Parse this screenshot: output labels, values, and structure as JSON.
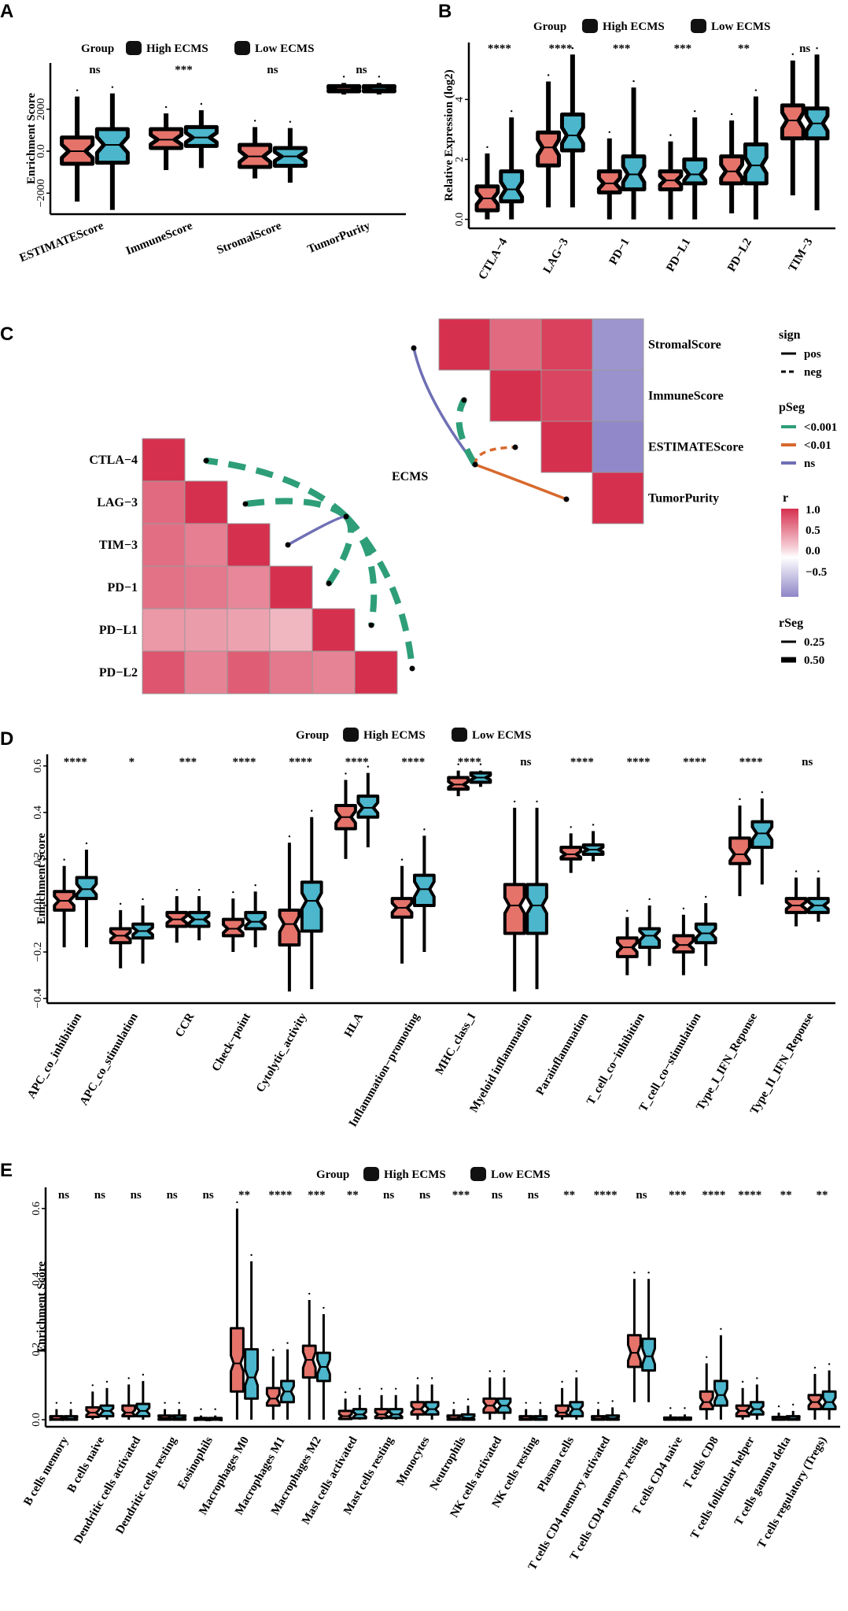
{
  "colors": {
    "high": "#E5736A",
    "low": "#4BB6CC",
    "edge": "#000000",
    "green": "#2E9E78",
    "orange": "#D8692E",
    "purple": "#6F6FB5"
  },
  "legend": {
    "group_title": "Group",
    "high_label": "High ECMS",
    "low_label": "Low  ECMS"
  },
  "chart_data": [
    {
      "panel": "A",
      "type": "box",
      "ylabel": "Enrichment Score",
      "yticks": [
        -2000,
        0,
        2000
      ],
      "ylim": [
        -3000,
        4200
      ],
      "categories": [
        "ESTIMATEScore",
        "ImmuneScore",
        "StromalScore",
        "TumorPurity"
      ],
      "signif": [
        "ns",
        "***",
        "ns",
        "ns"
      ],
      "high": [
        [
          -2400,
          -600,
          0,
          650,
          2600
        ],
        [
          -900,
          150,
          550,
          1050,
          1800
        ],
        [
          -1300,
          -750,
          -250,
          300,
          1150
        ],
        [
          2700,
          2850,
          2950,
          3100,
          3250
        ]
      ],
      "low": [
        [
          -2800,
          -550,
          300,
          1050,
          2750
        ],
        [
          -800,
          250,
          650,
          1150,
          1950
        ],
        [
          -1500,
          -700,
          -250,
          150,
          1100
        ],
        [
          2700,
          2850,
          2950,
          3100,
          3250
        ]
      ]
    },
    {
      "panel": "B",
      "type": "box",
      "ylabel": "Relative Expression (log2)",
      "yticks": [
        0,
        2,
        4
      ],
      "ylim": [
        -0.3,
        5.9
      ],
      "categories": [
        "CTLA−4",
        "LAG−3",
        "PD−1",
        "PD−L1",
        "PD−L2",
        "TIM−3"
      ],
      "signif": [
        "****",
        "****",
        "***",
        "***",
        "**",
        "ns"
      ],
      "high": [
        [
          0,
          0.3,
          0.7,
          1.1,
          2.2
        ],
        [
          0.4,
          1.8,
          2.4,
          2.9,
          4.6
        ],
        [
          0,
          0.9,
          1.2,
          1.6,
          2.7
        ],
        [
          0,
          1,
          1.3,
          1.6,
          2.6
        ],
        [
          0.2,
          1.2,
          1.6,
          2.1,
          3.3
        ],
        [
          0.8,
          2.7,
          3.3,
          3.8,
          5.3
        ]
      ],
      "low": [
        [
          0,
          0.6,
          1,
          1.6,
          3.4
        ],
        [
          0.4,
          2.3,
          2.8,
          3.5,
          5.5
        ],
        [
          0,
          1,
          1.5,
          2.1,
          4.4
        ],
        [
          0,
          1.2,
          1.5,
          2,
          3.4
        ],
        [
          0,
          1.2,
          1.8,
          2.5,
          4.1
        ],
        [
          0.3,
          2.7,
          3.2,
          3.7,
          5.5
        ]
      ]
    },
    {
      "panel": "C",
      "type": "correlation-network",
      "right_matrix": {
        "labels": [
          "StromalScore",
          "ImmuneScore",
          "ESTIMATEScore",
          "TumorPurity"
        ],
        "r": [
          [
            1.0,
            0.72,
            0.92,
            -0.88
          ],
          [
            0.72,
            1.0,
            0.9,
            -0.9
          ],
          [
            0.92,
            0.9,
            1.0,
            -0.98
          ],
          [
            -0.88,
            -0.9,
            -0.98,
            1.0
          ]
        ]
      },
      "left_matrix": {
        "labels": [
          "CTLA−4",
          "LAG−3",
          "TIM−3",
          "PD−1",
          "PD−L1",
          "PD−L2"
        ],
        "r": [
          [
            1,
            0,
            0,
            0,
            0,
            0
          ],
          [
            0.72,
            1,
            0,
            0,
            0,
            0
          ],
          [
            0.7,
            0.62,
            1,
            0,
            0,
            0
          ],
          [
            0.68,
            0.65,
            0.58,
            1,
            0,
            0
          ],
          [
            0.5,
            0.48,
            0.45,
            0.35,
            1,
            0
          ],
          [
            0.82,
            0.6,
            0.78,
            0.65,
            0.6,
            1
          ]
        ]
      },
      "hub_label": "ECMS",
      "legend": {
        "sign_title": "sign",
        "sign_items": [
          "pos",
          "neg"
        ],
        "pseg_title": "pSeg",
        "pseg_items": [
          "<0.001",
          "<0.01",
          "ns"
        ],
        "r_title": "r",
        "r_ticks": [
          "1.0",
          "0.5",
          "0.0",
          "−0.5"
        ],
        "rseg_title": "rSeg",
        "rseg_items": [
          "0.25",
          "0.50"
        ]
      },
      "links": [
        {
          "to": "CTLA−4",
          "sign": "neg",
          "p": "<0.001",
          "r": 0.5
        },
        {
          "to": "LAG−3",
          "sign": "neg",
          "p": "<0.001",
          "r": 0.5
        },
        {
          "to": "TIM−3",
          "sign": "pos",
          "p": "ns",
          "r": 0.25
        },
        {
          "to": "PD−1",
          "sign": "neg",
          "p": "<0.001",
          "r": 0.5
        },
        {
          "to": "PD−L1",
          "sign": "neg",
          "p": "<0.001",
          "r": 0.5
        },
        {
          "to": "PD−L2",
          "sign": "neg",
          "p": "<0.001",
          "r": 0.5
        },
        {
          "to": "StromalScore",
          "sign": "pos",
          "p": "ns",
          "r": 0.25
        },
        {
          "to": "ImmuneScore",
          "sign": "neg",
          "p": "<0.001",
          "r": 0.5
        },
        {
          "to": "ESTIMATEScore",
          "sign": "neg",
          "p": "<0.01",
          "r": 0.25
        },
        {
          "to": "TumorPurity",
          "sign": "pos",
          "p": "<0.01",
          "r": 0.25
        }
      ]
    },
    {
      "panel": "D",
      "type": "box",
      "ylabel": "Enrichment Score",
      "yticks": [
        -0.4,
        -0.2,
        0.0,
        0.2,
        0.4,
        0.6
      ],
      "ylim": [
        -0.42,
        0.65
      ],
      "categories": [
        "APC_co_inhibition",
        "APC_co_stimulation",
        "CCR",
        "Check−point",
        "Cytolytic_activity",
        "HLA",
        "Inflammation−promoting",
        "MHC_class_I",
        "Myeloid inflammation",
        "Parainflammation",
        "T_cell_co−inhibition",
        "T_cell_co−stimulation",
        "Type_I_IFN_Reponse",
        "Type_II_IFN_Reponse"
      ],
      "signif": [
        "****",
        "*",
        "***",
        "****",
        "****",
        "****",
        "****",
        "****",
        "ns",
        "****",
        "****",
        "****",
        "****",
        "ns"
      ],
      "high": [
        [
          -0.18,
          -0.02,
          0.02,
          0.06,
          0.17
        ],
        [
          -0.27,
          -0.16,
          -0.13,
          -0.1,
          -0.02
        ],
        [
          -0.16,
          -0.09,
          -0.06,
          -0.03,
          0.04
        ],
        [
          -0.2,
          -0.13,
          -0.1,
          -0.06,
          0.03
        ],
        [
          -0.37,
          -0.17,
          -0.08,
          -0.02,
          0.27
        ],
        [
          0.2,
          0.33,
          0.38,
          0.43,
          0.54
        ],
        [
          -0.25,
          -0.05,
          -0.01,
          0.03,
          0.17
        ],
        [
          0.47,
          0.5,
          0.52,
          0.55,
          0.58
        ],
        [
          -0.37,
          -0.12,
          0.0,
          0.09,
          0.42
        ],
        [
          0.14,
          0.2,
          0.22,
          0.25,
          0.31
        ],
        [
          -0.3,
          -0.22,
          -0.18,
          -0.14,
          -0.05
        ],
        [
          -0.3,
          -0.2,
          -0.17,
          -0.13,
          -0.04
        ],
        [
          0.04,
          0.18,
          0.22,
          0.29,
          0.43
        ],
        [
          -0.09,
          -0.03,
          0.0,
          0.03,
          0.12
        ]
      ],
      "low": [
        [
          -0.18,
          0.03,
          0.07,
          0.12,
          0.24
        ],
        [
          -0.25,
          -0.14,
          -0.11,
          -0.08,
          0.0
        ],
        [
          -0.15,
          -0.09,
          -0.06,
          -0.03,
          0.04
        ],
        [
          -0.18,
          -0.1,
          -0.07,
          -0.03,
          0.06
        ],
        [
          -0.36,
          -0.11,
          0.02,
          0.1,
          0.38
        ],
        [
          0.25,
          0.38,
          0.42,
          0.47,
          0.57
        ],
        [
          -0.2,
          0.0,
          0.07,
          0.13,
          0.3
        ],
        [
          0.51,
          0.53,
          0.55,
          0.57,
          0.58
        ],
        [
          -0.36,
          -0.12,
          0.0,
          0.09,
          0.42
        ],
        [
          0.19,
          0.22,
          0.24,
          0.26,
          0.32
        ],
        [
          -0.26,
          -0.18,
          -0.13,
          -0.1,
          0.0
        ],
        [
          -0.26,
          -0.16,
          -0.12,
          -0.08,
          0.01
        ],
        [
          0.09,
          0.25,
          0.31,
          0.36,
          0.46
        ],
        [
          -0.07,
          -0.03,
          0.0,
          0.03,
          0.12
        ]
      ]
    },
    {
      "panel": "E",
      "type": "box",
      "ylabel": "Enrichment Score",
      "yticks": [
        0.0,
        0.2,
        0.4,
        0.6
      ],
      "ylim": [
        -0.02,
        0.66
      ],
      "categories": [
        "B cells memory",
        "B cells naive",
        "Dendritic cells activated",
        "Dendritic cells resting",
        "Eosinophils",
        "Macrophages M0",
        "Macrophages M1",
        "Macrophages M2",
        "Mast cells activated",
        "Mast cells resting",
        "Monocytes",
        "Neutrophils",
        "NK cells activated",
        "NK cells resting",
        "Plasma cells",
        "T cells CD4 memory activated",
        "T cells CD4 memory resting",
        "T cells CD4 naive",
        "T cells CD8",
        "T cells follicular helper",
        "T cells gamma delta",
        "T cells regulatory (Tregs)"
      ],
      "signif": [
        "ns",
        "ns",
        "ns",
        "ns",
        "ns",
        "**",
        "****",
        "***",
        "**",
        "ns",
        "ns",
        "***",
        "ns",
        "ns",
        "**",
        "****",
        "ns",
        "***",
        "****",
        "****",
        "**",
        "**"
      ],
      "high": [
        [
          0,
          0,
          0.002,
          0.01,
          0.03
        ],
        [
          0,
          0.008,
          0.02,
          0.035,
          0.08
        ],
        [
          0,
          0.01,
          0.02,
          0.04,
          0.1
        ],
        [
          0,
          0,
          0.005,
          0.012,
          0.03
        ],
        [
          0,
          0,
          0,
          0.005,
          0.012
        ],
        [
          0,
          0.08,
          0.16,
          0.26,
          0.6
        ],
        [
          0,
          0.04,
          0.06,
          0.09,
          0.18
        ],
        [
          0,
          0.12,
          0.17,
          0.21,
          0.34
        ],
        [
          0,
          0.002,
          0.01,
          0.025,
          0.06
        ],
        [
          0,
          0.005,
          0.015,
          0.03,
          0.07
        ],
        [
          0,
          0.015,
          0.03,
          0.05,
          0.1
        ],
        [
          0,
          0,
          0.004,
          0.012,
          0.03
        ],
        [
          0,
          0.02,
          0.04,
          0.06,
          0.12
        ],
        [
          0,
          0,
          0.003,
          0.01,
          0.03
        ],
        [
          0,
          0.01,
          0.02,
          0.04,
          0.09
        ],
        [
          0,
          0,
          0.003,
          0.01,
          0.03
        ],
        [
          0.05,
          0.15,
          0.19,
          0.24,
          0.4
        ],
        [
          0,
          0,
          0.002,
          0.006,
          0.015
        ],
        [
          0,
          0.03,
          0.05,
          0.08,
          0.16
        ],
        [
          0,
          0.01,
          0.025,
          0.04,
          0.09
        ],
        [
          0,
          0,
          0.002,
          0.008,
          0.02
        ],
        [
          0,
          0.03,
          0.05,
          0.07,
          0.13
        ]
      ],
      "low": [
        [
          0,
          0,
          0.003,
          0.01,
          0.03
        ],
        [
          0,
          0.01,
          0.025,
          0.04,
          0.09
        ],
        [
          0,
          0.01,
          0.025,
          0.045,
          0.11
        ],
        [
          0,
          0,
          0.005,
          0.012,
          0.03
        ],
        [
          0,
          0,
          0,
          0.005,
          0.012
        ],
        [
          0,
          0.06,
          0.12,
          0.2,
          0.45
        ],
        [
          0,
          0.05,
          0.08,
          0.11,
          0.2
        ],
        [
          0,
          0.11,
          0.15,
          0.19,
          0.3
        ],
        [
          0,
          0.004,
          0.015,
          0.03,
          0.07
        ],
        [
          0,
          0.005,
          0.015,
          0.03,
          0.07
        ],
        [
          0,
          0.015,
          0.03,
          0.05,
          0.1
        ],
        [
          0,
          0,
          0.005,
          0.015,
          0.04
        ],
        [
          0,
          0.02,
          0.04,
          0.06,
          0.12
        ],
        [
          0,
          0,
          0.003,
          0.01,
          0.03
        ],
        [
          0,
          0.01,
          0.03,
          0.05,
          0.12
        ],
        [
          0,
          0,
          0.004,
          0.012,
          0.035
        ],
        [
          0.05,
          0.14,
          0.18,
          0.23,
          0.4
        ],
        [
          0,
          0,
          0.002,
          0.006,
          0.015
        ],
        [
          0,
          0.04,
          0.07,
          0.11,
          0.24
        ],
        [
          0,
          0.015,
          0.03,
          0.05,
          0.1
        ],
        [
          0,
          0,
          0.003,
          0.01,
          0.025
        ],
        [
          0,
          0.03,
          0.05,
          0.08,
          0.14
        ]
      ]
    }
  ]
}
